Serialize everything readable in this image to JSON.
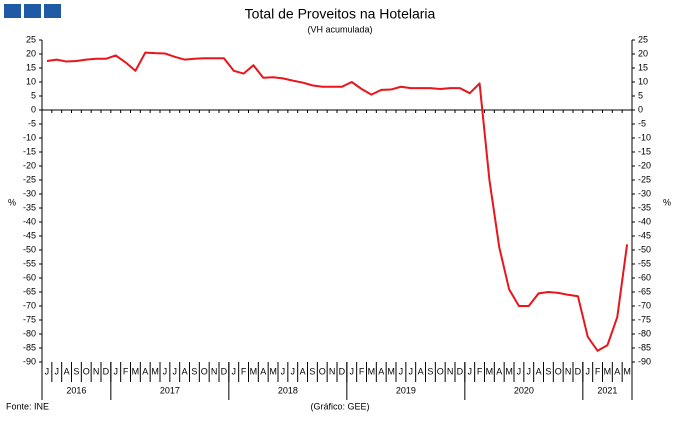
{
  "chart_data": {
    "type": "line",
    "title": "Total de Proveitos na Hotelaria",
    "subtitle": "(VH acumulada)",
    "y_label": "%",
    "source": "Fonte: INE",
    "credit": "(Gráfico: GEE)",
    "categories": [
      "J",
      "J",
      "A",
      "S",
      "O",
      "N",
      "D",
      "J",
      "F",
      "M",
      "A",
      "M",
      "J",
      "J",
      "A",
      "S",
      "O",
      "N",
      "D",
      "J",
      "F",
      "M",
      "A",
      "M",
      "J",
      "J",
      "A",
      "S",
      "O",
      "N",
      "D",
      "J",
      "F",
      "M",
      "A",
      "M",
      "J",
      "J",
      "A",
      "S",
      "O",
      "N",
      "D",
      "J",
      "F",
      "M",
      "A",
      "M",
      "J",
      "J",
      "A",
      "S",
      "O",
      "N",
      "D",
      "J",
      "F",
      "M",
      "A",
      "M"
    ],
    "groups": [
      {
        "label": "2016",
        "months": 7
      },
      {
        "label": "2017",
        "months": 12
      },
      {
        "label": "2018",
        "months": 12
      },
      {
        "label": "2019",
        "months": 12
      },
      {
        "label": "2020",
        "months": 12
      },
      {
        "label": "2021",
        "months": 5
      }
    ],
    "series": [
      {
        "name": "Total de Proveitos",
        "color": "#e8151b",
        "values": [
          17.5,
          18,
          17.3,
          17.5,
          18,
          18.3,
          18.3,
          19.5,
          17,
          14,
          20.5,
          20.3,
          20.2,
          19,
          18,
          18.3,
          18.5,
          18.5,
          18.5,
          14,
          13,
          16,
          11.5,
          11.7,
          11.3,
          10.5,
          9.8,
          8.8,
          8.3,
          8.3,
          8.3,
          10,
          7.5,
          5.5,
          7.2,
          7.3,
          8.3,
          7.8,
          7.8,
          7.8,
          7.5,
          7.8,
          7.8,
          6,
          9.5,
          -25,
          -49,
          -64,
          -70,
          -70,
          -65.5,
          -65,
          -65.3,
          -66,
          -66.5,
          -81,
          -86,
          -84,
          -74,
          -48
        ]
      }
    ],
    "ylim": [
      -90,
      25
    ],
    "yticks": [
      25,
      20,
      15,
      10,
      5,
      0,
      -5,
      -10,
      -15,
      -20,
      -25,
      -30,
      -35,
      -40,
      -45,
      -50,
      -55,
      -60,
      -65,
      -70,
      -75,
      -80,
      -85,
      -90
    ]
  }
}
